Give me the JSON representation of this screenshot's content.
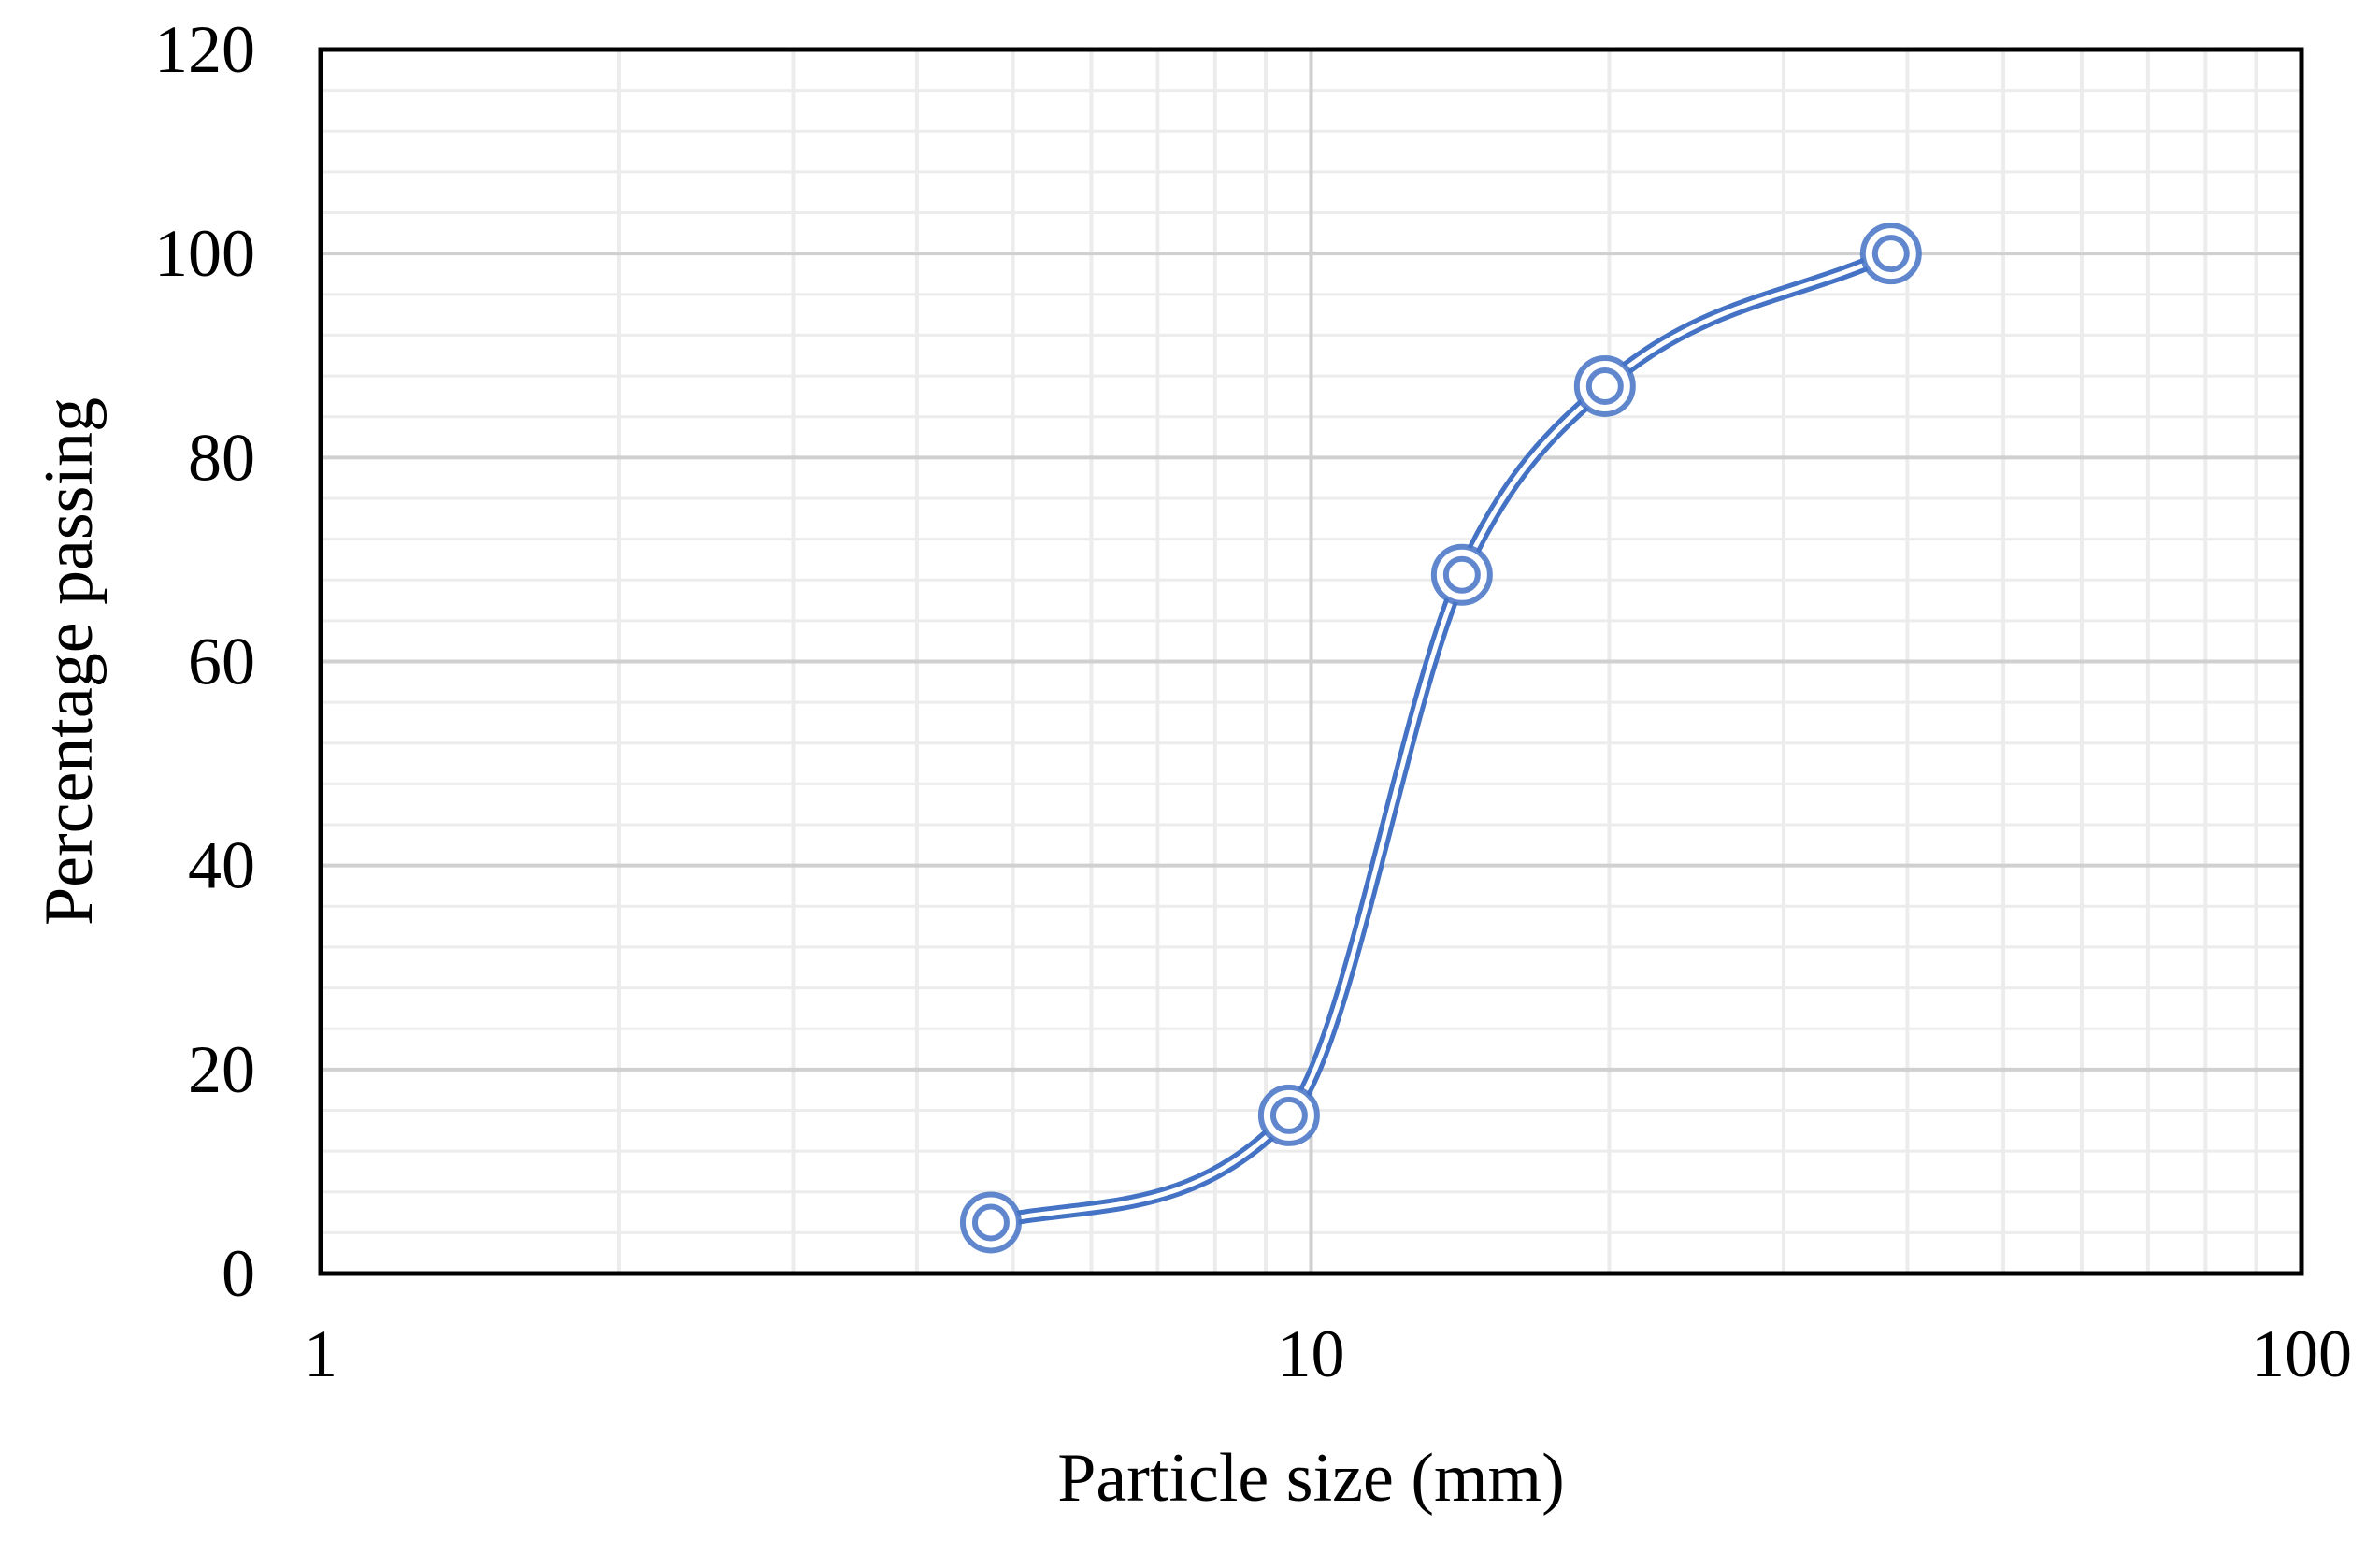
{
  "chart_data": {
    "type": "line",
    "title": "",
    "xlabel": "Particle size (mm)",
    "ylabel": "Percentage passing",
    "x_scale": "log",
    "xlim": [
      1,
      100
    ],
    "ylim": [
      0,
      120
    ],
    "x_ticks": [
      1,
      10,
      100
    ],
    "x_tick_labels": [
      "1",
      "10",
      "100"
    ],
    "y_ticks": [
      0,
      20,
      40,
      60,
      80,
      100,
      120
    ],
    "y_tick_labels": [
      "0",
      "20",
      "40",
      "60",
      "80",
      "100",
      "120"
    ],
    "grid": true,
    "minor_grid": true,
    "legend": "none",
    "series": [
      {
        "x": [
          4.75,
          9.5,
          14.2,
          19.8,
          38.5
        ],
        "y": [
          5,
          15.5,
          68.5,
          87,
          100
        ],
        "color": "#4472c4",
        "smooth": true,
        "marker": "double-circle"
      }
    ]
  }
}
